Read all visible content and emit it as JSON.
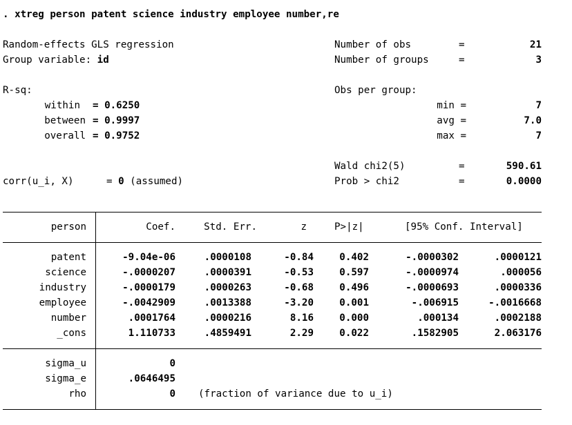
{
  "command": ". xtreg person patent science industry employee number,re",
  "header": {
    "title": "Random-effects GLS regression",
    "group_label": "Group variable:",
    "group_var": "id",
    "nobs_label": "Number of obs",
    "nobs": "21",
    "ngroups_label": "Number of groups",
    "ngroups": "3",
    "eq": "=",
    "rsq_label": "R-sq:",
    "within_label": "within",
    "within": "= 0.6250",
    "between_label": "between",
    "between": "= 0.9997",
    "overall_label": "overall",
    "overall": "= 0.9752",
    "obs_per_group_label": "Obs per group:",
    "min_label": "min =",
    "min": "7",
    "avg_label": "avg =",
    "avg": "7.0",
    "max_label": "max =",
    "max": "7",
    "wald_label": "Wald chi2(5)",
    "wald": "590.61",
    "prob_label": "Prob > chi2",
    "prob": "0.0000",
    "corr_label": "corr(u_i, X)",
    "corr_eq": "= ",
    "corr_value": "0",
    "corr_note": " (assumed)"
  },
  "table": {
    "depvar": "person",
    "columns": [
      "Coef.",
      "Std. Err.",
      "z",
      "P>|z|",
      "[95% Conf. Interval]"
    ],
    "rows": [
      {
        "name": "patent",
        "coef": "-9.04e-06",
        "se": ".0000108",
        "z": "-0.84",
        "p": "0.402",
        "lo": "-.0000302",
        "hi": ".0000121"
      },
      {
        "name": "science",
        "coef": "-.0000207",
        "se": ".0000391",
        "z": "-0.53",
        "p": "0.597",
        "lo": "-.0000974",
        "hi": ".000056"
      },
      {
        "name": "industry",
        "coef": "-.0000179",
        "se": ".0000263",
        "z": "-0.68",
        "p": "0.496",
        "lo": "-.0000693",
        "hi": ".0000336"
      },
      {
        "name": "employee",
        "coef": "-.0042909",
        "se": ".0013388",
        "z": "-3.20",
        "p": "0.001",
        "lo": "-.006915",
        "hi": "-.0016668"
      },
      {
        "name": "number",
        "coef": ".0001764",
        "se": ".0000216",
        "z": "8.16",
        "p": "0.000",
        "lo": ".000134",
        "hi": ".0002188"
      },
      {
        "name": "_cons",
        "coef": "1.110733",
        "se": ".4859491",
        "z": "2.29",
        "p": "0.022",
        "lo": ".1582905",
        "hi": "2.063176"
      }
    ],
    "sigma_u_label": "sigma_u",
    "sigma_u": "0",
    "sigma_e_label": "sigma_e",
    "sigma_e": ".0646495",
    "rho_label": "rho",
    "rho": "0",
    "rho_note": "(fraction of variance due to u_i)"
  }
}
